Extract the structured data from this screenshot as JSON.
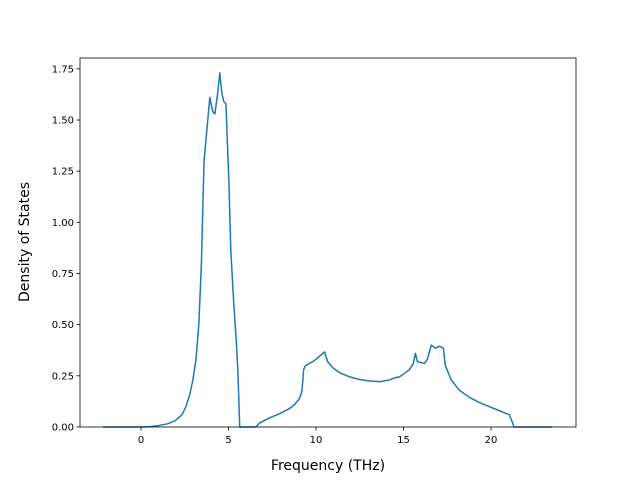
{
  "chart_data": {
    "type": "line",
    "xlabel": "Frequency (THz)",
    "ylabel": "Density of States",
    "xlim": [
      -3.49,
      24.86
    ],
    "ylim": [
      0,
      1.803
    ],
    "xticks": [
      0,
      5,
      10,
      15,
      20
    ],
    "yticks": [
      {
        "value": 0,
        "label": "0.00"
      },
      {
        "value": 0.25,
        "label": "0.25"
      },
      {
        "value": 0.5,
        "label": "0.50"
      },
      {
        "value": 0.75,
        "label": "0.75"
      },
      {
        "value": 1,
        "label": "1.00"
      },
      {
        "value": 1.25,
        "label": "1.25"
      },
      {
        "value": 1.5,
        "label": "1.50"
      },
      {
        "value": 1.75,
        "label": "1.75"
      }
    ],
    "color": "#1f77b4",
    "x": [
      -2.17,
      0,
      0.5,
      1,
      1.5,
      1.94,
      2.34,
      2.57,
      2.79,
      2.96,
      3.14,
      3.3,
      3.45,
      3.6,
      3.76,
      3.93,
      4.1,
      4.22,
      4.39,
      4.5,
      4.62,
      4.73,
      4.85,
      5.02,
      5.13,
      5.3,
      5.42,
      5.53,
      5.64,
      6.56,
      6.78,
      7.35,
      7.92,
      8.49,
      8.78,
      9.06,
      9.18,
      9.24,
      9.29,
      9.4,
      9.92,
      10.49,
      10.66,
      10.95,
      11.35,
      11.92,
      12.49,
      13.06,
      13.63,
      13.91,
      14.2,
      14.48,
      14.77,
      14.94,
      15.34,
      15.56,
      15.68,
      15.79,
      16.19,
      16.36,
      16.59,
      16.82,
      17.05,
      17.28,
      17.39,
      17.73,
      18.19,
      18.76,
      19.33,
      19.9,
      20.47,
      21.04,
      21.15,
      21.32,
      23.49
    ],
    "values": [
      0,
      0,
      0.002,
      0.007,
      0.015,
      0.03,
      0.06,
      0.1,
      0.16,
      0.23,
      0.33,
      0.5,
      0.8,
      1.3,
      1.45,
      1.61,
      1.54,
      1.53,
      1.64,
      1.73,
      1.63,
      1.59,
      1.58,
      1.2,
      0.86,
      0.6,
      0.45,
      0.28,
      0,
      0,
      0.02,
      0.045,
      0.065,
      0.09,
      0.11,
      0.14,
      0.17,
      0.22,
      0.28,
      0.3,
      0.325,
      0.367,
      0.32,
      0.29,
      0.265,
      0.245,
      0.232,
      0.225,
      0.222,
      0.225,
      0.23,
      0.24,
      0.245,
      0.255,
      0.28,
      0.31,
      0.36,
      0.32,
      0.31,
      0.33,
      0.4,
      0.385,
      0.395,
      0.385,
      0.3,
      0.23,
      0.18,
      0.145,
      0.12,
      0.1,
      0.08,
      0.06,
      0.04,
      0,
      0
    ]
  }
}
